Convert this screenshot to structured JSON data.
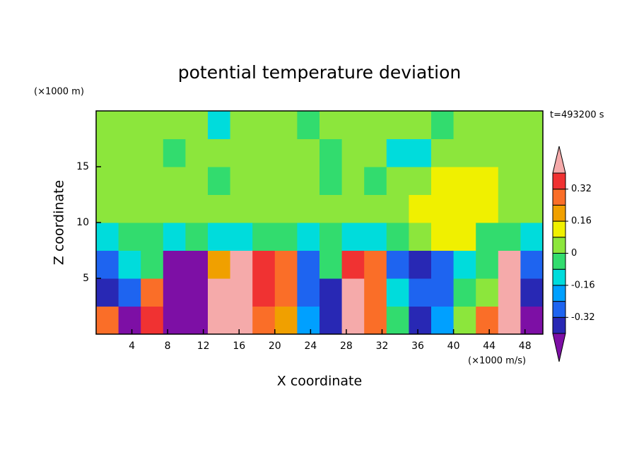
{
  "chart_data": {
    "type": "contour",
    "title": "potential temperature deviation",
    "y_unit": "(×1000 m)",
    "x_unit": "(×1000 m/s)",
    "time_label": "t=493200 s",
    "xlabel": "X coordinate",
    "ylabel": "Z coordinate",
    "xlim": [
      0,
      50
    ],
    "ylim": [
      0,
      20
    ],
    "xticks": [
      4,
      8,
      12,
      16,
      20,
      24,
      28,
      32,
      36,
      40,
      44,
      48
    ],
    "yticks": [
      5,
      10,
      15
    ],
    "x": [
      1.25,
      3.75,
      6.25,
      8.75,
      11.25,
      13.75,
      16.25,
      18.75,
      21.25,
      23.75,
      26.25,
      28.75,
      31.25,
      33.75,
      36.25,
      38.75,
      41.25,
      43.75,
      46.25,
      48.75
    ],
    "y": [
      1.25,
      3.75,
      6.25,
      8.75,
      11.25,
      13.75,
      16.25,
      18.75
    ],
    "z": [
      [
        0.3,
        -0.45,
        0.35,
        -0.45,
        -0.45,
        0.45,
        0.45,
        0.3,
        0.2,
        -0.2,
        -0.35,
        0.45,
        0.25,
        -0.05,
        -0.35,
        -0.2,
        0.02,
        0.3,
        0.45,
        -0.45
      ],
      [
        -0.35,
        -0.3,
        0.25,
        -0.45,
        -0.45,
        0.45,
        0.45,
        0.35,
        0.25,
        -0.25,
        -0.35,
        0.42,
        0.3,
        -0.15,
        -0.3,
        -0.25,
        -0.05,
        0.05,
        0.45,
        -0.4
      ],
      [
        -0.3,
        -0.15,
        -0.05,
        -0.45,
        -0.45,
        0.2,
        0.45,
        0.35,
        0.25,
        -0.25,
        -0.05,
        0.35,
        0.25,
        -0.3,
        -0.35,
        -0.25,
        -0.12,
        -0.03,
        0.45,
        -0.25
      ],
      [
        -0.12,
        -0.05,
        -0.04,
        -0.1,
        -0.04,
        -0.12,
        -0.12,
        -0.05,
        -0.03,
        -0.12,
        -0.04,
        -0.12,
        -0.1,
        -0.04,
        0.05,
        0.12,
        0.1,
        -0.03,
        -0.04,
        -0.1
      ],
      [
        0.04,
        0.04,
        0.05,
        0.04,
        0.03,
        0.04,
        0.04,
        0.05,
        0.04,
        0.03,
        0.05,
        0.04,
        0.02,
        0.04,
        0.1,
        0.12,
        0.12,
        0.1,
        0.05,
        0.04
      ],
      [
        0.05,
        0.04,
        0.05,
        0.04,
        0.04,
        -0.03,
        0.04,
        0.05,
        0.04,
        0.04,
        -0.03,
        0.04,
        -0.03,
        0.04,
        0.05,
        0.1,
        0.12,
        0.1,
        0.04,
        0.04
      ],
      [
        0.04,
        0.04,
        0.03,
        -0.03,
        0.04,
        0.05,
        0.03,
        0.04,
        0.05,
        0.04,
        -0.03,
        0.04,
        0.03,
        -0.1,
        -0.12,
        0.03,
        0.04,
        0.04,
        0.04,
        0.03
      ],
      [
        0.04,
        0.05,
        0.04,
        0.05,
        0.04,
        -0.1,
        0.04,
        0.05,
        0.04,
        -0.03,
        0.04,
        0.05,
        0.04,
        0.04,
        0.04,
        -0.03,
        0.04,
        0.05,
        0.04,
        0.05
      ]
    ],
    "levels": [
      -0.4,
      -0.32,
      -0.24,
      -0.16,
      -0.08,
      0,
      0.08,
      0.16,
      0.24,
      0.32,
      0.4
    ],
    "colors": [
      "#7d0fa5",
      "#2828b4",
      "#1e64f0",
      "#00a0ff",
      "#00dcdc",
      "#32dc6e",
      "#8ce63c",
      "#f0f000",
      "#f0a000",
      "#fa6e28",
      "#f03232",
      "#f5aaaa"
    ],
    "cbar_ticks": [
      -0.32,
      -0.16,
      0,
      0.16,
      0.32
    ]
  }
}
